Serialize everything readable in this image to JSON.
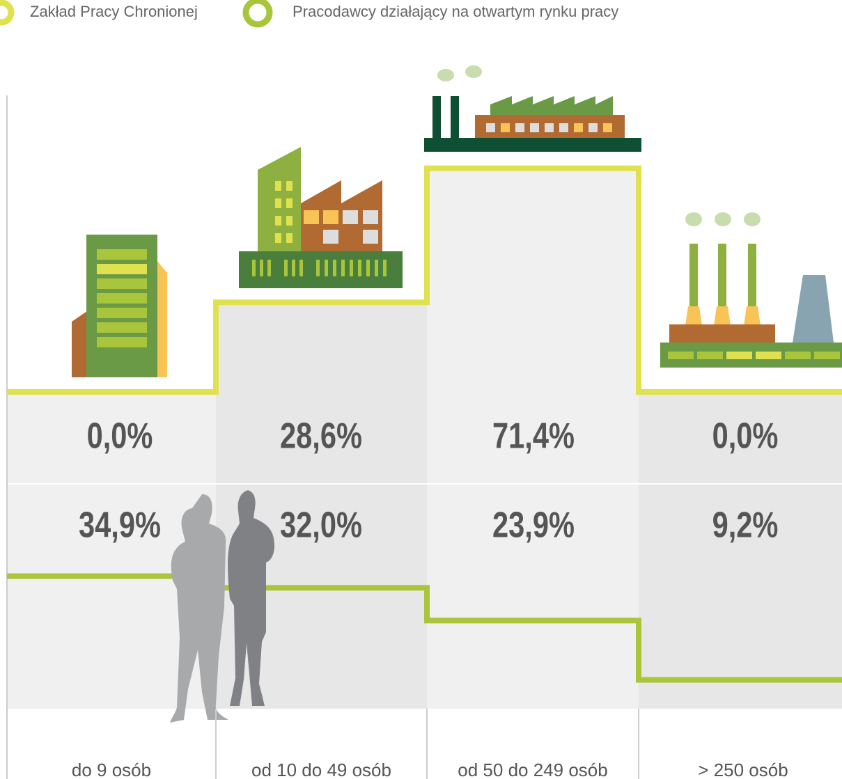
{
  "chart_data": {
    "type": "step",
    "categories": [
      "do 9 osób",
      "od 10 do 49 osób",
      "od 50 do 249 osób",
      "> 250 osób"
    ],
    "series": [
      {
        "name": "Zakład Pracy Chronionej",
        "color": "#dfe24e",
        "values": [
          0.0,
          28.6,
          71.4,
          0.0
        ],
        "value_labels": [
          "0,0%",
          "28,6%",
          "71,4%",
          "0,0%"
        ]
      },
      {
        "name": "Pracodawcy działający na otwartym rynku pracy",
        "color": "#a9c53c",
        "values": [
          34.9,
          32.0,
          23.9,
          9.2
        ],
        "value_labels": [
          "34,9%",
          "32,0%",
          "23,9%",
          "9,2%"
        ]
      }
    ]
  }
}
